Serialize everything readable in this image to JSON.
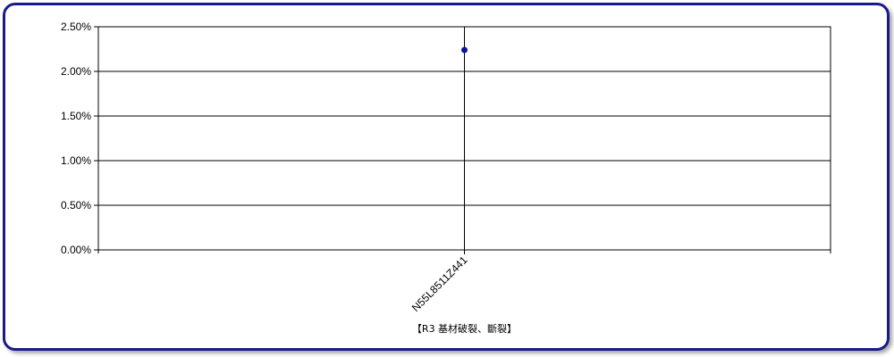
{
  "chart_data": {
    "type": "scatter",
    "title": "",
    "xlabel": "【R3 基材破裂、斷裂】",
    "ylabel": "",
    "categories": [
      "N55L8511Z441"
    ],
    "series": [
      {
        "values": [
          0.0224
        ]
      }
    ],
    "ylim": [
      0,
      0.025
    ],
    "yticks": [
      0,
      0.005,
      0.01,
      0.015,
      0.02,
      0.025
    ],
    "ytick_labels": [
      "0.00%",
      "0.50%",
      "1.00%",
      "1.50%",
      "2.00%",
      "2.50%"
    ],
    "grid": true,
    "legend": "none",
    "colors": {
      "point": "#0a14a0",
      "frame": "#1a1a8c",
      "grid": "#000000"
    }
  }
}
